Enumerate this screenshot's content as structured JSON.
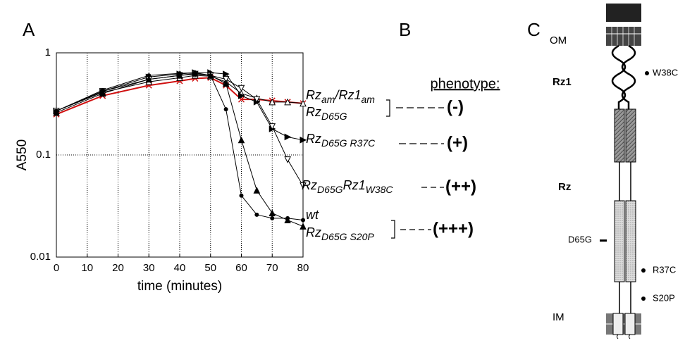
{
  "chart_data": {
    "type": "line",
    "y_label": "A550",
    "x_label": "time (minutes)",
    "log_y": true,
    "grid": true,
    "xlim": [
      0,
      80
    ],
    "xticks": [
      0,
      10,
      20,
      30,
      40,
      50,
      60,
      70,
      80
    ],
    "ylim": [
      0.01,
      1
    ],
    "yticks": [
      1,
      0.1,
      0.01
    ],
    "x": [
      0,
      15,
      30,
      40,
      45,
      50,
      55,
      60,
      65,
      70,
      75,
      80
    ],
    "series": [
      {
        "label": [
          {
            "text": "Rz"
          },
          {
            "text": "am",
            "sub": true
          },
          {
            "text": "/Rz1"
          },
          {
            "text": "am",
            "sub": true
          }
        ],
        "color": "#d01010",
        "marker": "x",
        "values": [
          0.25,
          0.38,
          0.48,
          0.53,
          0.56,
          0.57,
          0.48,
          0.35,
          0.35,
          0.34,
          0.33,
          0.32
        ]
      },
      {
        "label": [
          {
            "text": "Rz"
          },
          {
            "text": "D65G",
            "sub": true
          }
        ],
        "color": "#000000",
        "marker": "tri-up-open",
        "values": [
          0.27,
          0.41,
          0.52,
          0.57,
          0.6,
          0.59,
          0.52,
          0.4,
          0.36,
          0.33,
          0.33,
          0.32
        ]
      },
      {
        "label": [
          {
            "text": "Rz"
          },
          {
            "text": "D65G  R37C",
            "sub": true
          }
        ],
        "color": "#000000",
        "marker": "tri-right",
        "values": [
          0.27,
          0.42,
          0.58,
          0.62,
          0.64,
          0.64,
          0.62,
          0.38,
          0.33,
          0.18,
          0.15,
          0.14
        ]
      },
      {
        "label": [
          {
            "text": "Rz"
          },
          {
            "text": "D65G",
            "sub": true
          },
          {
            "text": "Rz1"
          },
          {
            "text": "W38C",
            "sub": true
          }
        ],
        "color": "#000000",
        "marker": "tri-down-open",
        "values": [
          0.27,
          0.42,
          0.55,
          0.6,
          0.62,
          0.6,
          0.55,
          0.45,
          0.35,
          0.19,
          0.09,
          0.05
        ]
      },
      {
        "label": [
          {
            "text": "wt"
          }
        ],
        "color": "#000000",
        "marker": "circle",
        "values": [
          0.27,
          0.43,
          0.6,
          0.63,
          0.64,
          0.6,
          0.28,
          0.04,
          0.026,
          0.024,
          0.024,
          0.023
        ]
      },
      {
        "label": [
          {
            "text": "Rz"
          },
          {
            "text": "D65G  S20P",
            "sub": true
          }
        ],
        "color": "#000000",
        "marker": "tri-up",
        "values": [
          0.26,
          0.4,
          0.55,
          0.6,
          0.63,
          0.6,
          0.5,
          0.14,
          0.045,
          0.027,
          0.023,
          0.02
        ]
      }
    ],
    "phenotypes": [
      "(-)",
      "(+)",
      "(++)",
      "(+++)"
    ]
  },
  "panels": [
    "A",
    "B",
    "C"
  ],
  "phenotype_header": "phenotype:",
  "diagram": {
    "labels": [
      "OM",
      "Rz1",
      "W38C",
      "Rz",
      "D65G",
      "R37C",
      "S20P",
      "IM"
    ]
  }
}
